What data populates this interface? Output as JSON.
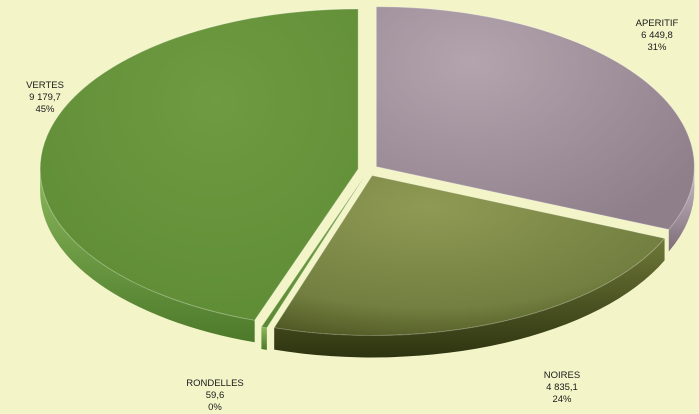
{
  "chart_data": {
    "type": "pie",
    "style": "3d-exploded",
    "legend": "none",
    "slices": [
      {
        "label": "APERITIF",
        "value": "6 449,8",
        "numeric": 6449.8,
        "percent": "31%",
        "color": "#a1909c"
      },
      {
        "label": "NOIRES",
        "value": "4 835,1",
        "numeric": 4835.1,
        "percent": "24%",
        "color": "#7d8a48"
      },
      {
        "label": "RONDELLES",
        "value": "59,6",
        "numeric": 59.6,
        "percent": "0%",
        "color": "#6a9a3c"
      },
      {
        "label": "VERTES",
        "value": "9 179,7",
        "numeric": 9179.7,
        "percent": "45%",
        "color": "#6a9a3c"
      }
    ]
  }
}
